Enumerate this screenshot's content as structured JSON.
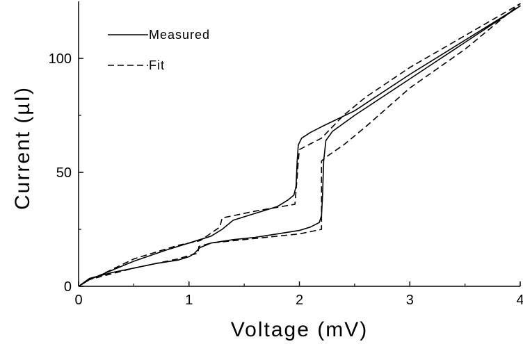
{
  "chart_data": {
    "type": "line",
    "xlabel": "Voltage (mV)",
    "ylabel": "Current (µI)",
    "xlim": [
      0,
      4
    ],
    "ylim": [
      0,
      125
    ],
    "x_ticks": [
      "0",
      "1",
      "2",
      "3",
      "4"
    ],
    "y_ticks": [
      "0",
      "50",
      "100"
    ],
    "legend_position": "top-left",
    "grid": false,
    "series": [
      {
        "name": "Measured",
        "style": "solid",
        "color": "#000000",
        "x": [
          0,
          0.1,
          0.3,
          0.5,
          0.7,
          0.9,
          1.0,
          1.05,
          1.1,
          1.2,
          1.4,
          1.6,
          1.8,
          2.0,
          2.1,
          2.18,
          2.2,
          2.21,
          2.22,
          2.24,
          2.3,
          2.5,
          3.0,
          3.5,
          4.0,
          3.5,
          3.0,
          2.5,
          2.2,
          2.1,
          2.02,
          1.99,
          1.98,
          1.97,
          1.95,
          1.9,
          1.8,
          1.6,
          1.4,
          1.3,
          1.2,
          1.0,
          0.8,
          0.5,
          0.2,
          0.1,
          0
        ],
        "y": [
          0,
          3.5,
          6,
          8,
          10,
          11.5,
          13,
          14.5,
          17,
          19,
          20.5,
          21.5,
          23,
          24.5,
          26,
          28,
          31,
          40,
          55,
          64,
          68,
          75,
          91,
          107,
          123,
          108,
          93,
          77,
          70,
          67.5,
          65,
          62,
          55,
          44,
          40,
          38,
          35,
          32,
          29,
          25,
          22,
          19,
          16,
          11,
          5,
          3,
          0
        ]
      },
      {
        "name": "Fit",
        "style": "dashed",
        "color": "#000000",
        "x": [
          0,
          0.1,
          0.3,
          0.5,
          0.7,
          0.9,
          1.0,
          1.08,
          1.09,
          1.2,
          1.4,
          1.6,
          1.8,
          2.0,
          2.1,
          2.2,
          2.2,
          2.25,
          2.4,
          2.6,
          3.0,
          3.5,
          4.0,
          3.5,
          3.0,
          2.6,
          2.4,
          2.2,
          2.0,
          1.99,
          1.98,
          1.97,
          1.96,
          1.6,
          1.3,
          1.28,
          1.1,
          0.9,
          0.5,
          0.2,
          0.1,
          0
        ],
        "y": [
          0,
          3,
          5.5,
          8,
          10,
          12,
          13.5,
          14.5,
          17.5,
          19,
          20,
          21,
          22,
          23,
          24,
          25,
          55,
          57,
          62,
          70,
          87,
          104,
          124,
          110,
          96,
          83,
          75,
          65,
          60,
          55,
          48,
          42,
          36,
          33,
          30,
          26,
          20,
          18,
          12,
          5,
          3,
          0
        ]
      }
    ]
  }
}
